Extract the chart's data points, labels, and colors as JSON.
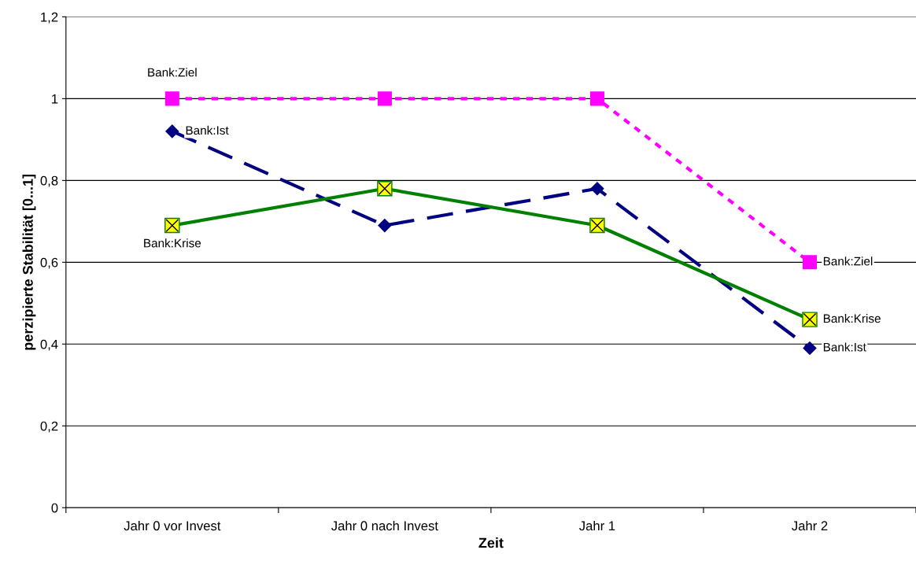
{
  "chart_data": {
    "type": "line",
    "xlabel": "Zeit",
    "ylabel": "perzipierte Stabilität [0...1]",
    "categories": [
      "Jahr 0 vor Invest",
      "Jahr 0 nach Invest",
      "Jahr 1",
      "Jahr 2"
    ],
    "series": [
      {
        "name": "Bank:Ziel",
        "color": "#ff00ff",
        "values": [
          1,
          1,
          1,
          0.6
        ],
        "marker": "square",
        "line_style": "dotted"
      },
      {
        "name": "Bank:Ist",
        "color": "#000080",
        "values": [
          0.92,
          0.69,
          0.78,
          0.39
        ],
        "marker": "diamond",
        "line_style": "dashed"
      },
      {
        "name": "Bank:Krise",
        "color": "#008000",
        "values": [
          0.69,
          0.78,
          0.69,
          0.46
        ],
        "marker": "square",
        "line_style": "solid"
      }
    ],
    "ylim": [
      0,
      1.2
    ],
    "yticks": [
      0,
      {
        "value": 0.2,
        "label": "0,2"
      },
      {
        "value": 0.4,
        "label": "0,4"
      },
      {
        "value": 0.6,
        "label": "0,6"
      },
      {
        "value": 0.8,
        "label": "0,8"
      },
      1,
      {
        "value": 1.2,
        "label": "1,2"
      }
    ],
    "grid": "y",
    "legend": false
  }
}
